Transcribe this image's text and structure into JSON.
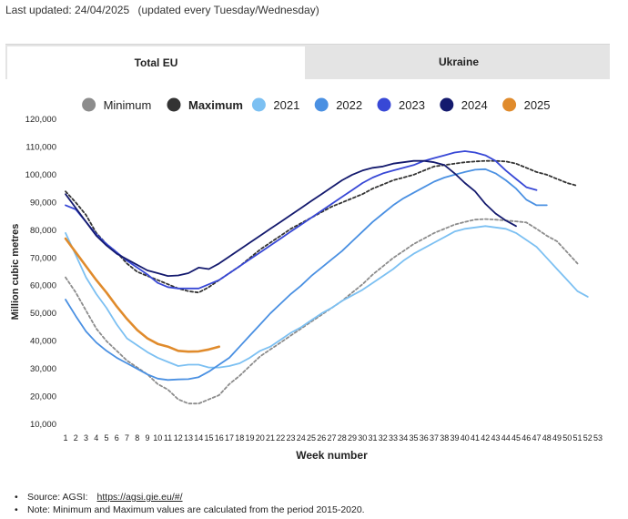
{
  "last_updated": "Last updated: 24/04/2025",
  "update_note": "(updated every Tuesday/Wednesday)",
  "tabs": [
    {
      "label": "Total EU",
      "active": true
    },
    {
      "label": "Ukraine",
      "active": false
    }
  ],
  "sources": {
    "source_label": "Source: AGSI:",
    "source_link": "https://agsi.gie.eu/#/",
    "note": "Note: Minimum and Maximum values are calculated from the period 2015-2020."
  },
  "chart_data": {
    "type": "line",
    "title": "",
    "xlabel": "Week number",
    "ylabel": "Million cubic metres",
    "ylim": [
      10000,
      120000
    ],
    "yticks": [
      10000,
      20000,
      30000,
      40000,
      50000,
      60000,
      70000,
      80000,
      90000,
      100000,
      110000,
      120000
    ],
    "ytick_labels": [
      "10,000",
      "20,000",
      "30,000",
      "40,000",
      "50,000",
      "60,000",
      "70,000",
      "80,000",
      "90,000",
      "100,000",
      "110,000",
      "120,000"
    ],
    "x": [
      1,
      2,
      3,
      4,
      5,
      6,
      7,
      8,
      9,
      10,
      11,
      12,
      13,
      14,
      15,
      16,
      17,
      18,
      19,
      20,
      21,
      22,
      23,
      24,
      25,
      26,
      27,
      28,
      29,
      30,
      31,
      32,
      33,
      34,
      35,
      36,
      37,
      38,
      39,
      40,
      41,
      42,
      43,
      44,
      45,
      46,
      47,
      48,
      49,
      50,
      51,
      52,
      53
    ],
    "grid": false,
    "legend_position": "top",
    "series": [
      {
        "name": "Minimum",
        "color": "#8c8c8c",
        "dashed": true,
        "values": [
          63000,
          57500,
          51000,
          44500,
          40000,
          36500,
          33000,
          30500,
          28000,
          24500,
          22500,
          19000,
          17500,
          17500,
          19000,
          20500,
          24500,
          27500,
          31000,
          34500,
          37000,
          39500,
          42000,
          44500,
          47000,
          49500,
          52000,
          54500,
          57500,
          60500,
          64000,
          67000,
          70000,
          72500,
          75000,
          77000,
          79000,
          80500,
          82000,
          83000,
          83800,
          84000,
          83800,
          83500,
          83200,
          82800,
          80500,
          78000,
          76000,
          72000,
          68000,
          null,
          null
        ]
      },
      {
        "name": "Maximum",
        "color": "#333333",
        "dashed": true,
        "values": [
          94000,
          90000,
          85500,
          79000,
          75000,
          72000,
          68000,
          65000,
          63500,
          62000,
          60500,
          59000,
          58000,
          57500,
          59500,
          62000,
          64500,
          67000,
          70000,
          73000,
          75500,
          78000,
          80500,
          82500,
          84500,
          86500,
          88500,
          90000,
          91500,
          93000,
          95000,
          96500,
          98000,
          99000,
          100000,
          101500,
          103000,
          103500,
          104000,
          104500,
          104800,
          105000,
          105000,
          104800,
          104000,
          102500,
          101000,
          100000,
          98500,
          97000,
          96000,
          null,
          null
        ]
      },
      {
        "name": "2021",
        "color": "#7cc0f2",
        "dashed": false,
        "values": [
          79000,
          71000,
          63000,
          57000,
          52000,
          46000,
          41000,
          38500,
          36000,
          34000,
          32500,
          31000,
          31500,
          31500,
          30500,
          30500,
          31000,
          32000,
          34000,
          36500,
          38000,
          40500,
          43000,
          45000,
          47500,
          50000,
          52000,
          54500,
          56500,
          58500,
          61000,
          63500,
          66000,
          69000,
          71500,
          73500,
          75500,
          77500,
          79500,
          80500,
          81000,
          81500,
          81000,
          80500,
          79000,
          76500,
          74000,
          70000,
          66000,
          62000,
          58000,
          56000,
          null
        ]
      },
      {
        "name": "2022",
        "color": "#4a90e2",
        "dashed": false,
        "values": [
          55000,
          49000,
          43500,
          39500,
          36500,
          34000,
          32000,
          30000,
          28000,
          26500,
          26000,
          26200,
          26300,
          27000,
          29000,
          31500,
          34000,
          38000,
          42000,
          46000,
          50000,
          53500,
          57000,
          60000,
          63500,
          66500,
          69500,
          72500,
          76000,
          79500,
          83000,
          86000,
          89000,
          91500,
          93500,
          95500,
          97500,
          99000,
          100000,
          101000,
          101800,
          102000,
          100500,
          98000,
          95000,
          91000,
          89000,
          89000,
          null,
          null,
          null,
          null,
          null
        ]
      },
      {
        "name": "2023",
        "color": "#3848d6",
        "dashed": false,
        "values": [
          89000,
          87500,
          83000,
          78500,
          75000,
          72000,
          69000,
          66500,
          64000,
          61000,
          59500,
          59000,
          59000,
          59000,
          60500,
          62000,
          64500,
          67000,
          69500,
          72000,
          74500,
          77000,
          79500,
          82000,
          84500,
          87000,
          89500,
          92000,
          94500,
          97000,
          99000,
          100500,
          101500,
          102500,
          103500,
          105000,
          106000,
          107000,
          108000,
          108500,
          108000,
          107000,
          105000,
          101500,
          98500,
          95500,
          94500,
          null,
          null,
          null,
          null,
          null,
          null
        ]
      },
      {
        "name": "2024",
        "color": "#141a6e",
        "dashed": false,
        "values": [
          93000,
          88000,
          83000,
          78000,
          74500,
          71500,
          69500,
          67500,
          65500,
          64500,
          63500,
          63700,
          64500,
          66500,
          66000,
          68000,
          70500,
          73000,
          75500,
          78000,
          80500,
          83000,
          85500,
          88000,
          90500,
          93000,
          95500,
          98000,
          100000,
          101500,
          102500,
          103000,
          104000,
          104500,
          105000,
          105000,
          104500,
          103500,
          100500,
          97000,
          94000,
          89500,
          86000,
          83500,
          81500,
          null,
          null,
          null,
          null,
          null,
          null,
          null,
          null
        ]
      },
      {
        "name": "2025",
        "color": "#e08b2c",
        "dashed": false,
        "values": [
          77000,
          72000,
          67000,
          62000,
          57500,
          52500,
          48000,
          44000,
          41000,
          39000,
          38000,
          36500,
          36200,
          36300,
          37000,
          38000,
          null,
          null,
          null,
          null,
          null,
          null,
          null,
          null,
          null,
          null,
          null,
          null,
          null,
          null,
          null,
          null,
          null,
          null,
          null,
          null,
          null,
          null,
          null,
          null,
          null,
          null,
          null,
          null,
          null,
          null,
          null,
          null,
          null,
          null,
          null,
          null,
          null
        ]
      }
    ]
  }
}
